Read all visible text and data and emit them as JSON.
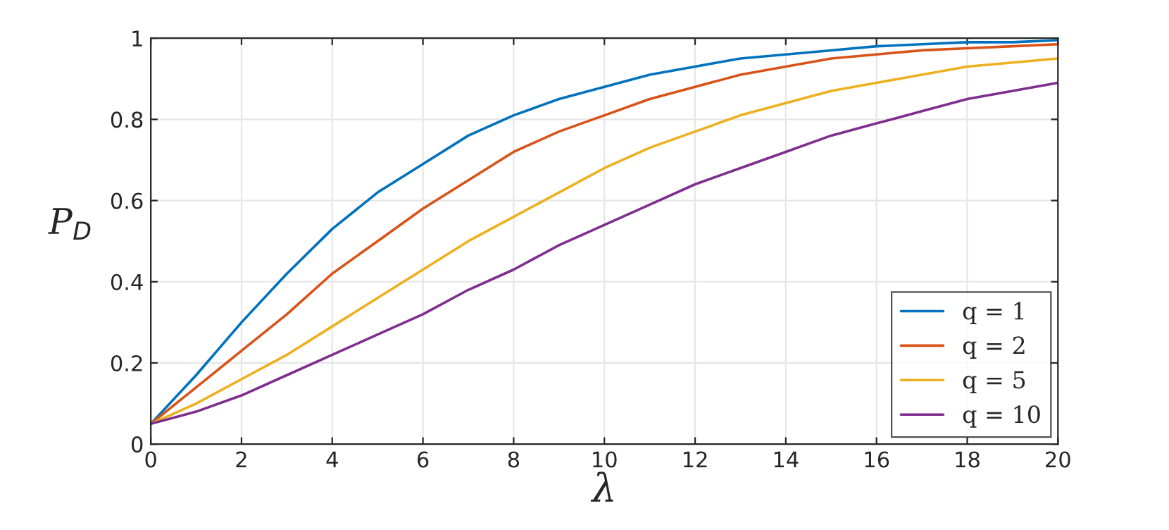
{
  "chart_data": {
    "type": "line",
    "xlabel": "λ",
    "ylabel": "P$_{D}$",
    "x": [
      0,
      1,
      2,
      3,
      4,
      5,
      6,
      7,
      8,
      9,
      10,
      11,
      12,
      13,
      14,
      15,
      16,
      17,
      18,
      19,
      20
    ],
    "series": [
      {
        "name": "q = 1",
        "color": "#0072bd",
        "values": [
          0.05,
          0.17,
          0.3,
          0.42,
          0.53,
          0.62,
          0.69,
          0.76,
          0.81,
          0.85,
          0.88,
          0.91,
          0.93,
          0.95,
          0.96,
          0.97,
          0.98,
          0.985,
          0.99,
          0.99,
          0.995
        ]
      },
      {
        "name": "q = 2",
        "color": "#d95319",
        "values": [
          0.05,
          0.14,
          0.23,
          0.32,
          0.42,
          0.5,
          0.58,
          0.65,
          0.72,
          0.77,
          0.81,
          0.85,
          0.88,
          0.91,
          0.93,
          0.95,
          0.96,
          0.97,
          0.975,
          0.98,
          0.985
        ]
      },
      {
        "name": "q = 5",
        "color": "#edb120",
        "values": [
          0.05,
          0.1,
          0.16,
          0.22,
          0.29,
          0.36,
          0.43,
          0.5,
          0.56,
          0.62,
          0.68,
          0.73,
          0.77,
          0.81,
          0.84,
          0.87,
          0.89,
          0.91,
          0.93,
          0.94,
          0.95
        ]
      },
      {
        "name": "q = 10",
        "color": "#7e2f8e",
        "values": [
          0.05,
          0.08,
          0.12,
          0.17,
          0.22,
          0.27,
          0.32,
          0.38,
          0.43,
          0.49,
          0.54,
          0.59,
          0.64,
          0.68,
          0.72,
          0.76,
          0.79,
          0.82,
          0.85,
          0.87,
          0.89
        ]
      }
    ],
    "xlim": [
      0,
      20
    ],
    "xticks": [
      0,
      2,
      4,
      6,
      8,
      10,
      12,
      14,
      16,
      18,
      20
    ],
    "ylim": [
      0,
      1
    ],
    "yticks": [
      0,
      0.2,
      0.4,
      0.6,
      0.8,
      1
    ],
    "grid": true,
    "legend": "bottom right",
    "line_style": "solid",
    "marker": "none"
  }
}
